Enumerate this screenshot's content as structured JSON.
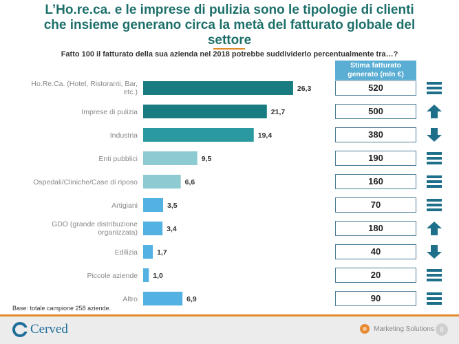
{
  "title": {
    "line1": "L’Ho.re.ca. e le imprese di pulizia sono le tipologie di clienti",
    "line2": "che insieme generano circa la metà del fatturato globale del",
    "line3": "settore"
  },
  "question": "Fatto 100 il fatturato della sua azienda nel 2018 potrebbe suddividerlo percentualmente tra…?",
  "stima_header": "Stima fatturato generato (mln €)",
  "chart_data": {
    "type": "bar",
    "orientation": "horizontal",
    "categories": [
      "Ho.Re.Ca. (Hotel, Ristoranti, Bar, etc.)",
      "Imprese di pulizia",
      "Industria",
      "Enti pubblici",
      "Ospedali/Cliniche/Case di riposo",
      "Artigiani",
      "GDO (grande distribuzione organizzata)",
      "Edilizia",
      "Piccole aziende",
      "Altro"
    ],
    "category_lines": [
      [
        "Ho.Re.Ca. (Hotel, Ristoranti, Bar,",
        "etc.)"
      ],
      [
        "Imprese di pulizia"
      ],
      [
        "Industria"
      ],
      [
        "Enti pubblici"
      ],
      [
        "Ospedali/Cliniche/Case di riposo"
      ],
      [
        "Artigiani"
      ],
      [
        "GDO (grande distribuzione",
        "organizzata)"
      ],
      [
        "Edilizia"
      ],
      [
        "Piccole aziende"
      ],
      [
        "Altro"
      ]
    ],
    "values": [
      26.3,
      21.7,
      19.4,
      9.5,
      6.6,
      3.5,
      3.4,
      1.7,
      1.0,
      6.9
    ],
    "value_labels": [
      "26,3",
      "21,7",
      "19,4",
      "9,5",
      "6,6",
      "3,5",
      "3,4",
      "1,7",
      "1,0",
      "6,9"
    ],
    "xlim": [
      0,
      28
    ],
    "colors": [
      "#197c80",
      "#197c80",
      "#2a9aa0",
      "#8ecad2",
      "#8ecad2",
      "#54b2e2",
      "#54b2e2",
      "#54b2e2",
      "#54b2e2",
      "#54b2e2"
    ]
  },
  "estimates": [
    "520",
    "500",
    "380",
    "190",
    "160",
    "70",
    "180",
    "40",
    "20",
    "90"
  ],
  "trends": [
    "stable",
    "up",
    "down",
    "stable",
    "stable",
    "stable",
    "up",
    "down",
    "stable",
    "stable"
  ],
  "trend_color": "#1e6f8a",
  "base_note": "Base: totale campione 258 aziende.",
  "footer": {
    "brand": "Cerved",
    "partner": "Marketing Solutions",
    "page": "8"
  }
}
